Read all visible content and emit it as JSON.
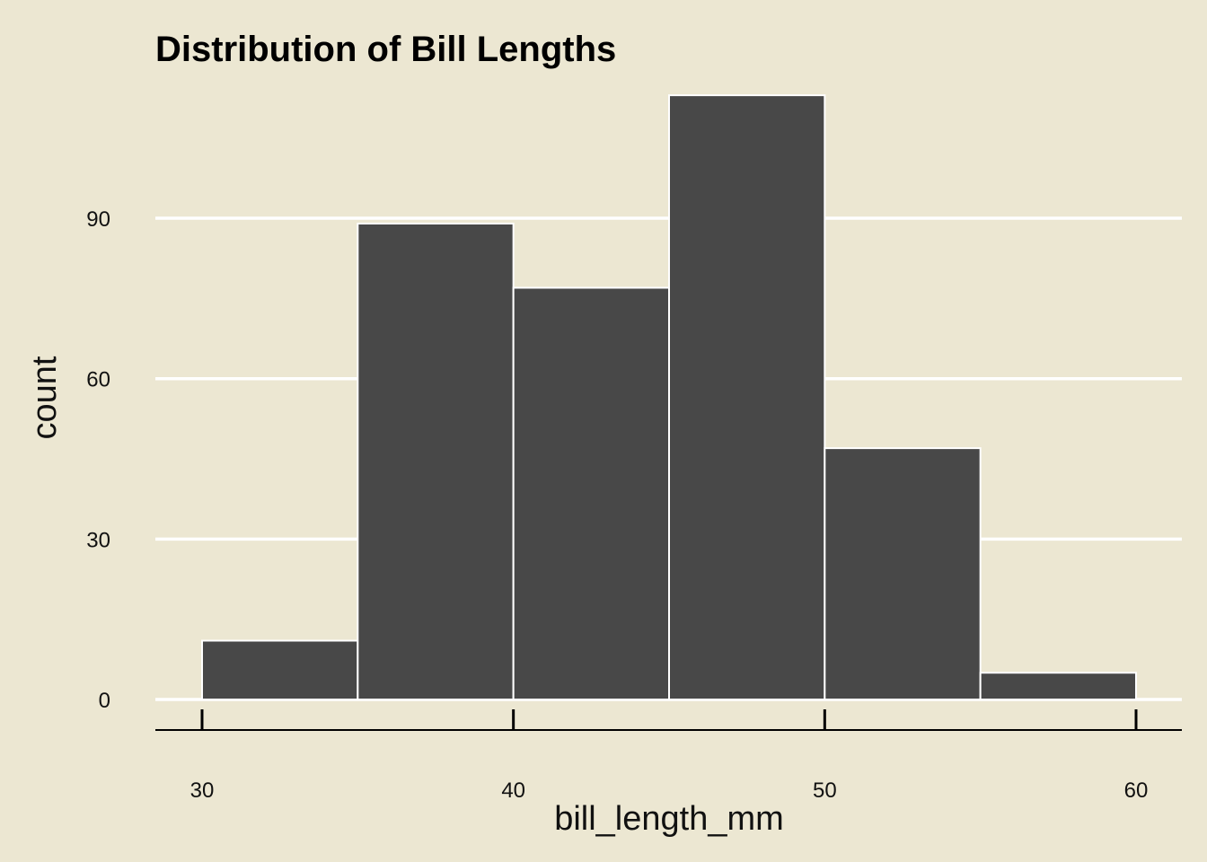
{
  "chart_data": {
    "type": "bar",
    "title": "Distribution of Bill Lengths",
    "xlabel": "bill_length_mm",
    "ylabel": "count",
    "bins": [
      {
        "x0": 30,
        "x1": 35,
        "count": 11
      },
      {
        "x0": 35,
        "x1": 40,
        "count": 89
      },
      {
        "x0": 40,
        "x1": 45,
        "count": 77
      },
      {
        "x0": 45,
        "x1": 50,
        "count": 113
      },
      {
        "x0": 50,
        "x1": 55,
        "count": 47
      },
      {
        "x0": 55,
        "x1": 60,
        "count": 5
      }
    ],
    "xticks": [
      30,
      40,
      50,
      60
    ],
    "yticks": [
      0,
      30,
      60,
      90
    ],
    "xlim": [
      30,
      60
    ],
    "ylim": [
      0,
      113
    ],
    "grid": "horizontal",
    "colors": {
      "background": "#ece7d2",
      "bar_fill": "#484848",
      "bar_edge": "#ffffff",
      "grid": "#ffffff",
      "axis": "#000000"
    }
  }
}
